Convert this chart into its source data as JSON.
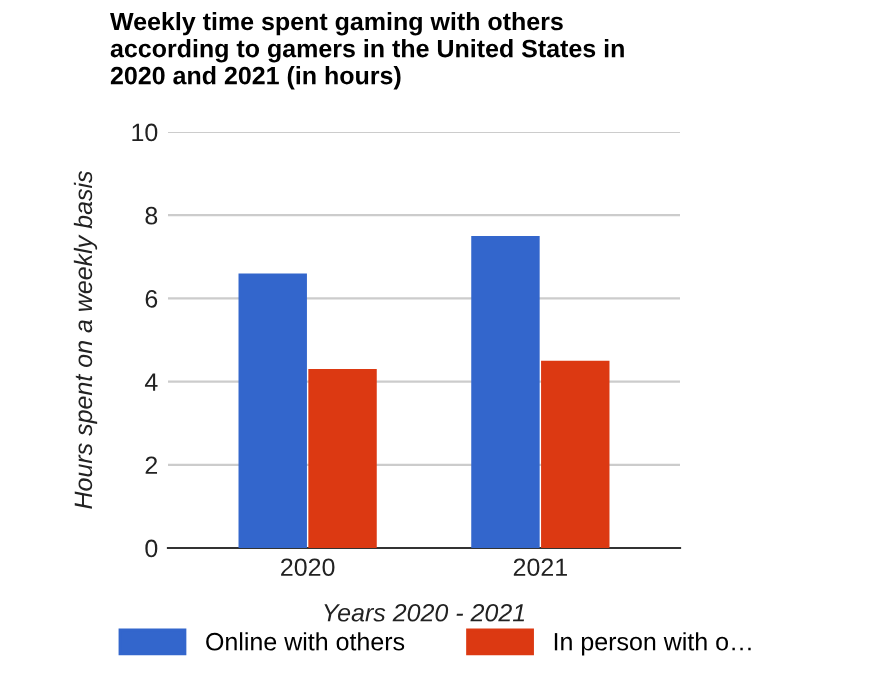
{
  "chart_data": {
    "type": "bar",
    "title": "Weekly time spent gaming with others\naccording to gamers in the United States in\n2020 and 2021 (in hours)",
    "xlabel": "Years 2020 - 2021",
    "ylabel": "Hours spent on a weekly basis",
    "categories": [
      "2020",
      "2021"
    ],
    "series": [
      {
        "name": "Online with others",
        "color": "#3366cc",
        "values": [
          6.6,
          7.5
        ]
      },
      {
        "name": "In person with o…",
        "color": "#dc3912",
        "values": [
          4.3,
          4.5
        ]
      }
    ],
    "ylim": [
      0,
      10
    ],
    "yticks": [
      0,
      2,
      4,
      6,
      8,
      10
    ],
    "grid": "y",
    "legend": "bottom"
  }
}
